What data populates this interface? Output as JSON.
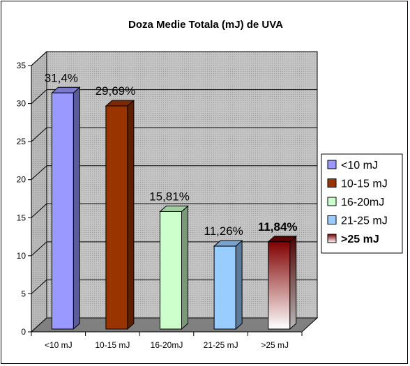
{
  "chart_data": {
    "type": "bar",
    "title": "Doza Medie Totala (mJ) de UVA",
    "categories": [
      "<10 mJ",
      "10-15 mJ",
      "16-20mJ",
      "21-25 mJ",
      ">25 mJ"
    ],
    "values": [
      31.4,
      29.69,
      15.81,
      11.26,
      11.84
    ],
    "data_labels": [
      "31,4%",
      "29,69%",
      "15,81%",
      "11,26%",
      "11,84%"
    ],
    "ylim": [
      0,
      35
    ],
    "yticks": [
      "0",
      "5",
      "10",
      "15",
      "20",
      "25",
      "30",
      "35"
    ],
    "grid": true,
    "legend_position": "right",
    "legend": [
      {
        "label": "<10 mJ",
        "color": "#9999ff"
      },
      {
        "label": "10-15 mJ",
        "color": "#993300"
      },
      {
        "label": "16-20mJ",
        "color": "#ccffcc"
      },
      {
        "label": "21-25 mJ",
        "color": "#99ccff"
      },
      {
        "label": ">25 mJ",
        "color": "#800000"
      }
    ],
    "colors": {
      "plot_area": "#c0c0c0",
      "floor": "#808080",
      "grid": "#000000"
    }
  }
}
